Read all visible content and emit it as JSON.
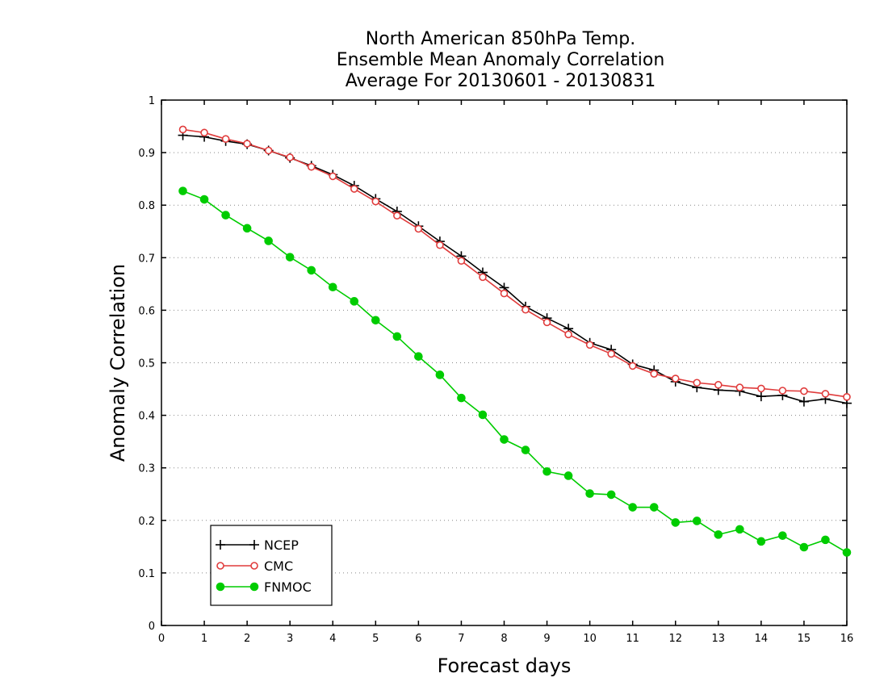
{
  "chart_data": {
    "type": "line",
    "title": [
      "North American 850hPa Temp.",
      "Ensemble Mean Anomaly Correlation",
      "Average For 20130601 - 20130831"
    ],
    "xlabel": "Forecast days",
    "ylabel": "Anomaly Correlation",
    "xlim": [
      0,
      16
    ],
    "ylim": [
      0,
      1
    ],
    "xticks": [
      "0",
      "1",
      "2",
      "3",
      "4",
      "5",
      "6",
      "7",
      "8",
      "9",
      "10",
      "11",
      "12",
      "13",
      "14",
      "15",
      "16"
    ],
    "yticks": [
      "0",
      "0.1",
      "0.2",
      "0.3",
      "0.4",
      "0.5",
      "0.6",
      "0.7",
      "0.8",
      "0.9",
      "1"
    ],
    "grid": "horizontal dotted",
    "legend_position": "bottom-left",
    "x": [
      0.5,
      1,
      1.5,
      2,
      2.5,
      3,
      3.5,
      4,
      4.5,
      5,
      5.5,
      6,
      6.5,
      7,
      7.5,
      8,
      8.5,
      9,
      9.5,
      10,
      10.5,
      11,
      11.5,
      12,
      12.5,
      13,
      13.5,
      14,
      14.5,
      15,
      15.5,
      16
    ],
    "series": [
      {
        "name": "NCEP",
        "color": "#000000",
        "marker": "plus",
        "values": [
          0.933,
          0.93,
          0.922,
          0.916,
          0.904,
          0.89,
          0.875,
          0.858,
          0.837,
          0.812,
          0.788,
          0.76,
          0.731,
          0.703,
          0.672,
          0.643,
          0.607,
          0.585,
          0.565,
          0.538,
          0.525,
          0.497,
          0.486,
          0.464,
          0.453,
          0.448,
          0.446,
          0.436,
          0.438,
          0.426,
          0.431,
          0.423
        ]
      },
      {
        "name": "CMC",
        "color": "#e03c3c",
        "marker": "open-circle",
        "values": [
          0.944,
          0.938,
          0.926,
          0.917,
          0.904,
          0.891,
          0.873,
          0.855,
          0.831,
          0.807,
          0.78,
          0.755,
          0.724,
          0.694,
          0.663,
          0.632,
          0.601,
          0.577,
          0.554,
          0.534,
          0.517,
          0.494,
          0.479,
          0.47,
          0.462,
          0.458,
          0.453,
          0.451,
          0.447,
          0.446,
          0.441,
          0.435
        ]
      },
      {
        "name": "FNMOC",
        "color": "#00cc00",
        "marker": "filled-circle",
        "values": [
          0.827,
          0.811,
          0.781,
          0.756,
          0.732,
          0.701,
          0.676,
          0.644,
          0.617,
          0.581,
          0.55,
          0.512,
          0.477,
          0.433,
          0.401,
          0.354,
          0.334,
          0.293,
          0.285,
          0.251,
          0.249,
          0.225,
          0.225,
          0.196,
          0.199,
          0.173,
          0.183,
          0.16,
          0.171,
          0.149,
          0.163,
          0.139
        ]
      }
    ]
  }
}
